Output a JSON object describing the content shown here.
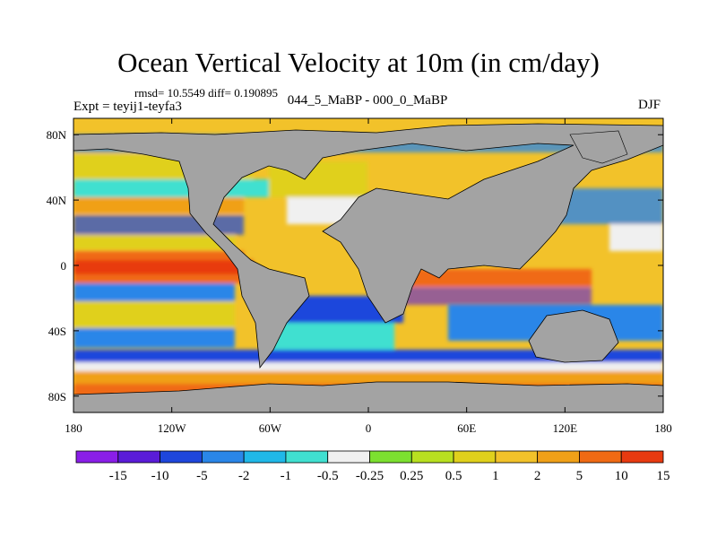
{
  "title": "Ocean Vertical Velocity at 10m (in cm/day)",
  "stats_text": "rmsd= 10.5549  diff= 0.190895",
  "expt_text": "Expt = teyij1-teyfa3",
  "difference_label": "044_5_MaBP - 000_0_MaBP",
  "season": "DJF",
  "colors": {
    "land": "#a3a3a3",
    "colorbar": [
      "#8a1ee8",
      "#5a1cd8",
      "#1e46dc",
      "#2a86e8",
      "#20b8e8",
      "#40e0d0",
      "#f0f0f0",
      "#7ce030",
      "#b8e020",
      "#e0d01c",
      "#f2c22a",
      "#f0a018",
      "#f06a14",
      "#e83a10"
    ]
  },
  "chart_data": {
    "type": "heatmap",
    "title": "Ocean Vertical Velocity at 10m (in cm/day)",
    "projection": "cylindrical equidistant",
    "xlim": [
      -180,
      180
    ],
    "ylim": [
      -90,
      90
    ],
    "x_ticks": [
      {
        "value": -180,
        "label": "180"
      },
      {
        "value": -120,
        "label": "120W"
      },
      {
        "value": -60,
        "label": "60W"
      },
      {
        "value": 0,
        "label": "0"
      },
      {
        "value": 60,
        "label": "60E"
      },
      {
        "value": 120,
        "label": "120E"
      },
      {
        "value": 180,
        "label": "180"
      }
    ],
    "y_ticks": [
      {
        "value": 80,
        "label": "80N"
      },
      {
        "value": 40,
        "label": "40N"
      },
      {
        "value": 0,
        "label": "0"
      },
      {
        "value": -40,
        "label": "40S"
      },
      {
        "value": -80,
        "label": "80S"
      }
    ],
    "contour_levels": [
      -15,
      -10,
      -5,
      -2,
      -1,
      -0.5,
      -0.25,
      0.25,
      0.5,
      1,
      2,
      5,
      10,
      15
    ],
    "colorbar_labels": [
      "-15",
      "-10",
      "-5",
      "-2",
      "-1",
      "-0.5",
      "-0.25",
      "0.25",
      "0.5",
      "1",
      "2",
      "5",
      "10",
      "15"
    ],
    "colorbar_orientation": "horizontal, below map"
  }
}
